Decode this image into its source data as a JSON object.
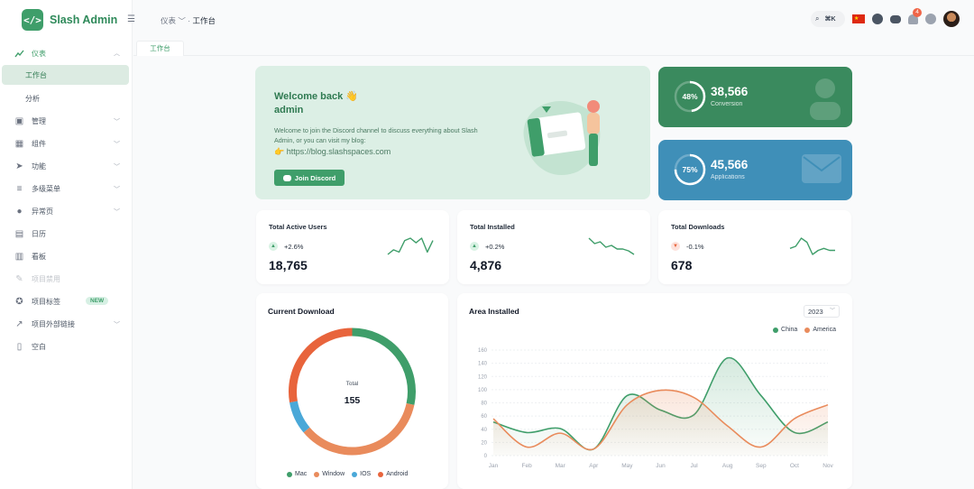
{
  "sidebar": {
    "logo_text": "Slash Admin",
    "logo_glyph": "</>",
    "items": [
      {
        "label": "仪表",
        "icon": "chart-trend-icon",
        "expanded": true
      },
      {
        "label": "工作台",
        "active": true
      },
      {
        "label": "分析"
      },
      {
        "label": "管理",
        "icon": "box-icon"
      },
      {
        "label": "组件",
        "icon": "grid-icon"
      },
      {
        "label": "功能",
        "icon": "paper-plane-icon"
      },
      {
        "label": "多级菜单",
        "icon": "menu-levels-icon"
      },
      {
        "label": "异常页",
        "icon": "error-icon"
      },
      {
        "label": "日历",
        "icon": "calendar-icon"
      },
      {
        "label": "看板",
        "icon": "clipboard-icon"
      },
      {
        "label": "项目禁用",
        "icon": "pen-icon",
        "disabled": true
      },
      {
        "label": "项目标签",
        "icon": "star-icon",
        "badge": "NEW"
      },
      {
        "label": "项目外部链接",
        "icon": "external-link-icon"
      },
      {
        "label": "空白",
        "icon": "file-icon"
      }
    ]
  },
  "header": {
    "breadcrumb": {
      "parent": "仪表",
      "current": "工作台"
    },
    "search_shortcut": "⌘K",
    "notification_count": "4"
  },
  "tabs": [
    {
      "label": "工作台"
    }
  ],
  "welcome": {
    "title_line1": "Welcome back 👋",
    "title_line2": "admin",
    "text": "Welcome to join the Discord channel to discuss everything about Slash Admin, or you can visit my blog:",
    "link": "https://blog.slashspaces.com",
    "button": "Join Discord"
  },
  "stats": [
    {
      "percent": "48%",
      "value": "38,566",
      "label": "Conversion",
      "fraction": 0.48,
      "color": "#3a8a5e"
    },
    {
      "percent": "75%",
      "value": "45,566",
      "label": "Applications",
      "fraction": 0.75,
      "color": "#3f8fb8"
    }
  ],
  "mini_cards": [
    {
      "title": "Total Active Users",
      "trend": "+2.6%",
      "direction": "up",
      "value": "18,765",
      "spark": [
        2,
        4,
        3,
        8,
        9,
        7,
        9,
        3,
        8
      ],
      "color": "#3f9e6a"
    },
    {
      "title": "Total Installed",
      "trend": "+0.2%",
      "direction": "up",
      "value": "4,876",
      "spark": [
        9,
        6,
        7,
        4,
        5,
        3,
        3,
        2,
        0
      ],
      "color": "#3f9e6a"
    },
    {
      "title": "Total Downloads",
      "trend": "-0.1%",
      "direction": "down",
      "value": "678",
      "spark": [
        4,
        5,
        9,
        7,
        1,
        3,
        4,
        3,
        3
      ],
      "color": "#3f9e6a"
    }
  ],
  "chart_data": [
    {
      "type": "pie",
      "title": "Current Download",
      "center_label": "Total",
      "center_value": "155",
      "categories": [
        "Mac",
        "Window",
        "IOS",
        "Android"
      ],
      "values": [
        44,
        55,
        13,
        43
      ],
      "colors": [
        "#3f9e6a",
        "#e98b5c",
        "#4aa8d8",
        "#e8643c"
      ]
    },
    {
      "type": "area",
      "title": "Area Installed",
      "year": "2023",
      "categories": [
        "Jan",
        "Feb",
        "Mar",
        "Apr",
        "May",
        "Jun",
        "Jul",
        "Aug",
        "Sep",
        "Oct",
        "Nov"
      ],
      "ylim": [
        0,
        160
      ],
      "yticks": [
        0,
        20,
        40,
        60,
        80,
        100,
        120,
        140,
        160
      ],
      "series": [
        {
          "name": "China",
          "color": "#3f9e6a",
          "values": [
            51,
            35,
            41,
            10,
            91,
            69,
            62,
            148,
            91,
            35,
            51
          ]
        },
        {
          "name": "America",
          "color": "#e98b5c",
          "values": [
            56,
            13,
            34,
            10,
            77,
            99,
            88,
            45,
            13,
            56,
            77
          ]
        }
      ]
    }
  ]
}
